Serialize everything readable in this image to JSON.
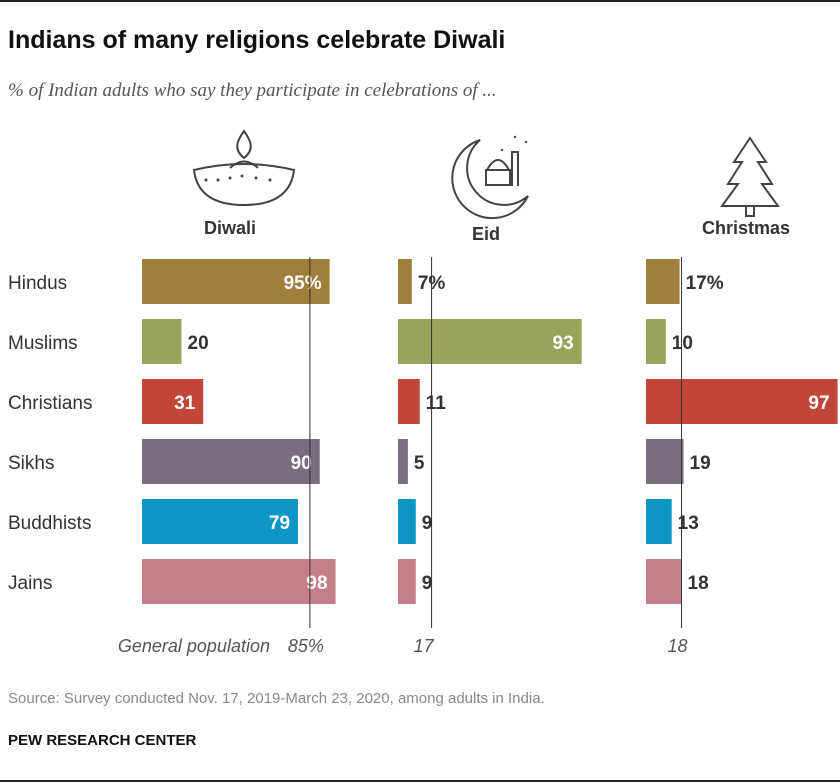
{
  "title": "Indians of many religions celebrate Diwali",
  "subtitle": "% of Indian adults who say they participate in celebrations of ...",
  "source": "Source: Survey conducted Nov. 17, 2019-March 23, 2020, among adults in India.",
  "organization": "PEW RESEARCH CENTER",
  "chart_data": {
    "type": "bar",
    "orientation": "horizontal",
    "categories": [
      "Hindus",
      "Muslims",
      "Christians",
      "Sikhs",
      "Buddhists",
      "Jains"
    ],
    "category_colors": [
      "#a07f3c",
      "#9aa35a",
      "#c2453a",
      "#7a6d80",
      "#0b96c4",
      "#c47f8b"
    ],
    "panels": [
      {
        "name": "Diwali",
        "icon": "diya-lamp-icon",
        "values": [
          95,
          20,
          31,
          90,
          79,
          98
        ],
        "general_population": 85,
        "general_population_label": "85%"
      },
      {
        "name": "Eid",
        "icon": "crescent-mosque-icon",
        "values": [
          7,
          93,
          11,
          5,
          9,
          9
        ],
        "general_population": 17,
        "general_population_label": "17"
      },
      {
        "name": "Christmas",
        "icon": "christmas-tree-icon",
        "values": [
          17,
          10,
          97,
          19,
          13,
          18
        ],
        "general_population": 18,
        "general_population_label": "18"
      }
    ],
    "value_labels_first_row_suffix": "%",
    "general_population_label": "General population",
    "xlim": [
      0,
      100
    ]
  }
}
